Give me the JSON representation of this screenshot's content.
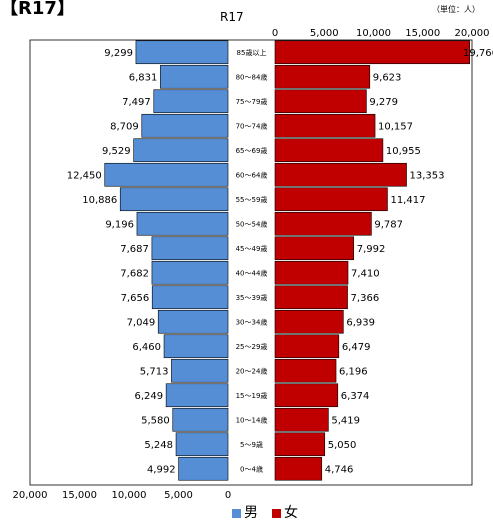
{
  "page_title": "【R17】",
  "chart_data": {
    "type": "bar",
    "title": "R17",
    "unit": "（単位：人）",
    "categories": [
      "85歳以上",
      "80～84歳",
      "75～79歳",
      "70～74歳",
      "65～69歳",
      "60～64歳",
      "55～59歳",
      "50～54歳",
      "45～49歳",
      "40～44歳",
      "35～39歳",
      "30～34歳",
      "25～29歳",
      "20～24歳",
      "15～19歳",
      "10～14歳",
      "5～9歳",
      "0～4歳"
    ],
    "series": [
      {
        "name": "男",
        "color": "#558ed5",
        "values": [
          9299,
          6831,
          7497,
          8709,
          9529,
          12450,
          10886,
          9196,
          7687,
          7682,
          7656,
          7049,
          6460,
          5713,
          6249,
          5580,
          5248,
          4992
        ],
        "labels": [
          "9,299",
          "6,831",
          "7,497",
          "8,709",
          "9,529",
          "12,450",
          "10,886",
          "9,196",
          "7,687",
          "7,682",
          "7,656",
          "7,049",
          "6,460",
          "5,713",
          "6,249",
          "5,580",
          "5,248",
          "4,992"
        ]
      },
      {
        "name": "女",
        "color": "#c00000",
        "values": [
          19766,
          9623,
          9279,
          10157,
          10955,
          13353,
          11417,
          9787,
          7992,
          7410,
          7366,
          6939,
          6479,
          6196,
          6374,
          5419,
          5050,
          4746
        ],
        "labels": [
          "19,766",
          "9,623",
          "9,279",
          "10,157",
          "10,955",
          "13,353",
          "11,417",
          "9,787",
          "7,992",
          "7,410",
          "7,366",
          "6,939",
          "6,479",
          "6,196",
          "6,374",
          "5,419",
          "5,050",
          "4,746"
        ]
      }
    ],
    "xlim": [
      0,
      20000
    ],
    "left_ticks": [
      "20,000",
      "15,000",
      "10,000",
      "5,000",
      "0"
    ],
    "right_ticks": [
      "0",
      "5,000",
      "10,000",
      "15,000",
      "20,000"
    ],
    "grid": false,
    "legend_position": "bottom-center"
  }
}
